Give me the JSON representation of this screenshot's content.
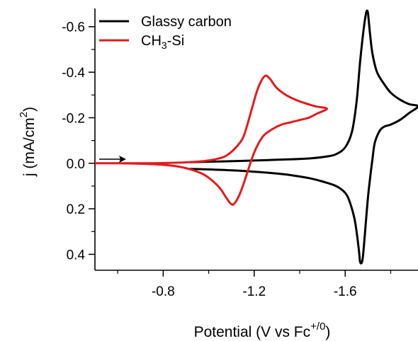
{
  "chart_data": {
    "type": "line",
    "title": "",
    "xlabel": {
      "main": "Potential (V vs Fc",
      "sup": "+/0",
      "close": ")"
    },
    "ylabel": {
      "main": "j (mA/cm",
      "sup": "2",
      "close": ")"
    },
    "x_axis_reversed": true,
    "y_axis_inverted": true,
    "xlim": [
      -0.5,
      -1.92
    ],
    "ylim": [
      -0.68,
      0.47
    ],
    "x_ticks": [
      -0.8,
      -1.2,
      -1.6
    ],
    "x_tick_labels": [
      "-0.8",
      "-1.2",
      "-1.6"
    ],
    "y_ticks": [
      -0.6,
      -0.4,
      -0.2,
      0.0,
      0.2,
      0.4
    ],
    "y_tick_labels": [
      "-0.6",
      "-0.4",
      "-0.2",
      "0.0",
      "0.2",
      "0.4"
    ],
    "legend_position": "top-left",
    "annotation": "scan-direction arrow",
    "series": [
      {
        "name": "Glassy carbon",
        "color": "#000000",
        "x": [
          -0.92,
          -1.05,
          -1.2,
          -1.35,
          -1.45,
          -1.52,
          -1.56,
          -1.6,
          -1.63,
          -1.65,
          -1.665,
          -1.68,
          -1.69,
          -1.695,
          -1.7,
          -1.705,
          -1.71,
          -1.72,
          -1.74,
          -1.77,
          -1.8,
          -1.84,
          -1.88,
          -1.92,
          -1.88,
          -1.84,
          -1.8,
          -1.77,
          -1.75,
          -1.73,
          -1.72,
          -1.71,
          -1.7,
          -1.69,
          -1.68,
          -1.675,
          -1.67,
          -1.665,
          -1.66,
          -1.65,
          -1.64,
          -1.62,
          -1.6,
          -1.56,
          -1.5,
          -1.44,
          -1.38,
          -1.3,
          -1.2,
          -1.1,
          -1.0,
          -0.92
        ],
        "y": [
          -0.005,
          -0.008,
          -0.012,
          -0.017,
          -0.022,
          -0.03,
          -0.04,
          -0.07,
          -0.14,
          -0.27,
          -0.44,
          -0.58,
          -0.65,
          -0.67,
          -0.66,
          -0.61,
          -0.56,
          -0.48,
          -0.4,
          -0.35,
          -0.31,
          -0.28,
          -0.26,
          -0.25,
          -0.22,
          -0.19,
          -0.17,
          -0.16,
          -0.14,
          -0.09,
          -0.02,
          0.06,
          0.15,
          0.27,
          0.39,
          0.43,
          0.44,
          0.43,
          0.38,
          0.3,
          0.24,
          0.17,
          0.13,
          0.1,
          0.08,
          0.065,
          0.055,
          0.045,
          0.037,
          0.031,
          0.027,
          0.025
        ]
      },
      {
        "name": "CH₃-Si",
        "name_parts": [
          "CH",
          "3",
          "-Si"
        ],
        "color": "#e31a1c",
        "x": [
          -0.5,
          -0.6,
          -0.7,
          -0.8,
          -0.9,
          -0.98,
          -1.04,
          -1.08,
          -1.12,
          -1.15,
          -1.17,
          -1.19,
          -1.21,
          -1.23,
          -1.25,
          -1.27,
          -1.3,
          -1.34,
          -1.38,
          -1.42,
          -1.47,
          -1.52,
          -1.48,
          -1.44,
          -1.4,
          -1.36,
          -1.32,
          -1.28,
          -1.24,
          -1.21,
          -1.19,
          -1.17,
          -1.15,
          -1.13,
          -1.11,
          -1.1,
          -1.09,
          -1.07,
          -1.05,
          -1.02,
          -0.98,
          -0.93,
          -0.87,
          -0.8,
          -0.7,
          -0.6,
          -0.5
        ],
        "y": [
          0.0,
          0.0,
          0.0,
          -0.001,
          -0.004,
          -0.01,
          -0.02,
          -0.035,
          -0.07,
          -0.11,
          -0.17,
          -0.24,
          -0.31,
          -0.36,
          -0.385,
          -0.37,
          -0.33,
          -0.3,
          -0.28,
          -0.265,
          -0.25,
          -0.24,
          -0.22,
          -0.2,
          -0.19,
          -0.18,
          -0.17,
          -0.15,
          -0.12,
          -0.07,
          -0.02,
          0.04,
          0.1,
          0.15,
          0.18,
          0.18,
          0.17,
          0.14,
          0.11,
          0.08,
          0.05,
          0.03,
          0.015,
          0.007,
          0.002,
          0.0,
          0.0
        ]
      }
    ]
  }
}
